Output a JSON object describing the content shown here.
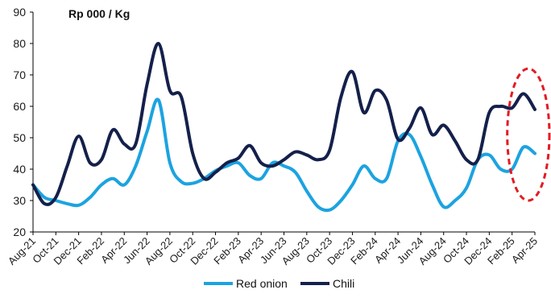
{
  "chart_data": {
    "type": "line",
    "unit_label": "Rp 000 / Kg",
    "ylim": [
      20,
      90
    ],
    "yticks": [
      20,
      30,
      40,
      50,
      60,
      70,
      80,
      90
    ],
    "x_tick_labels": [
      "Aug-21",
      "Oct-21",
      "Dec-21",
      "Feb-22",
      "Apr-22",
      "Jun-22",
      "Aug-22",
      "Oct-22",
      "Dec-22",
      "Feb-23",
      "Apr-23",
      "Jun-23",
      "Aug-23",
      "Oct-23",
      "Dec-23",
      "Feb-24",
      "Apr-24",
      "Jun-24",
      "Aug-24",
      "Oct-24",
      "Dec-24",
      "Feb-25",
      "Apr-25"
    ],
    "x": [
      "Aug-21",
      "Sep-21",
      "Oct-21",
      "Nov-21",
      "Dec-21",
      "Jan-22",
      "Feb-22",
      "Mar-22",
      "Apr-22",
      "May-22",
      "Jun-22",
      "Jul-22",
      "Aug-22",
      "Sep-22",
      "Oct-22",
      "Nov-22",
      "Dec-22",
      "Jan-23",
      "Feb-23",
      "Mar-23",
      "Apr-23",
      "May-23",
      "Jun-23",
      "Jul-23",
      "Aug-23",
      "Sep-23",
      "Oct-23",
      "Nov-23",
      "Dec-23",
      "Jan-24",
      "Feb-24",
      "Mar-24",
      "Apr-24",
      "May-24",
      "Jun-24",
      "Jul-24",
      "Aug-24",
      "Sep-24",
      "Oct-24",
      "Nov-24",
      "Dec-24",
      "Jan-25",
      "Feb-25",
      "Mar-25",
      "Apr-25"
    ],
    "series": [
      {
        "name": "Red onion",
        "color": "#1ca3e0",
        "values": [
          35,
          31,
          30,
          29,
          28.5,
          31,
          35,
          37,
          35,
          41,
          52,
          62,
          42,
          36,
          35.5,
          37,
          39.5,
          41,
          42,
          38,
          37,
          42,
          41,
          39,
          33,
          28,
          27,
          30,
          35,
          41,
          37,
          37,
          49,
          51,
          44,
          35,
          28,
          30,
          34,
          43,
          44.5,
          40,
          40,
          47,
          45
        ]
      },
      {
        "name": "Chili",
        "color": "#14204b",
        "values": [
          35,
          29,
          31,
          41,
          50.5,
          42,
          43,
          52.5,
          48,
          48,
          67,
          80,
          65,
          63,
          45,
          37,
          39,
          42,
          43.5,
          47.5,
          42,
          41,
          43,
          45.5,
          44.5,
          43,
          46,
          63,
          71,
          58,
          65,
          62,
          49.5,
          53,
          59.5,
          51,
          54,
          49,
          43,
          43,
          58,
          60,
          59.5,
          64,
          59
        ]
      }
    ],
    "annotation": {
      "type": "dashed-ellipse",
      "color": "#e31b23",
      "x_from": "Feb-25",
      "x_to": "Apr-25",
      "y_from": 30,
      "y_to": 72
    },
    "grid": false,
    "legend_position": "bottom-center"
  }
}
